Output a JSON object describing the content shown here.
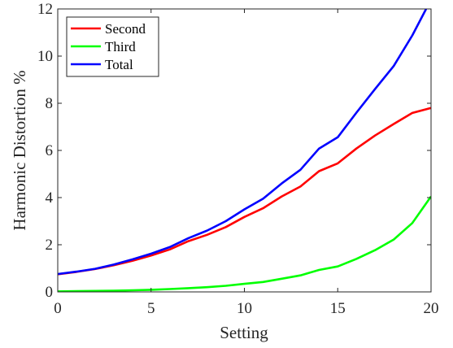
{
  "chart_data": {
    "type": "line",
    "title": "",
    "xlabel": "Setting",
    "ylabel": "Harmonic Distortion %",
    "xlim": [
      0,
      20
    ],
    "ylim": [
      0,
      12
    ],
    "xticks": [
      0,
      5,
      10,
      15,
      20
    ],
    "yticks": [
      0,
      2,
      4,
      6,
      8,
      10,
      12
    ],
    "grid": false,
    "legend_position": "top-left",
    "x": [
      0,
      1,
      2,
      3,
      4,
      5,
      6,
      7,
      8,
      9,
      10,
      11,
      12,
      13,
      14,
      15,
      16,
      17,
      18,
      19,
      20
    ],
    "series": [
      {
        "name": "Second",
        "color": "#ff0000",
        "values": [
          0.75,
          0.85,
          0.97,
          1.13,
          1.32,
          1.54,
          1.8,
          2.15,
          2.42,
          2.75,
          3.18,
          3.55,
          4.05,
          4.47,
          5.12,
          5.45,
          6.08,
          6.63,
          7.12,
          7.59,
          7.8
        ]
      },
      {
        "name": "Third",
        "color": "#00ff00",
        "values": [
          0.02,
          0.03,
          0.04,
          0.05,
          0.07,
          0.09,
          0.12,
          0.16,
          0.2,
          0.26,
          0.34,
          0.42,
          0.56,
          0.7,
          0.93,
          1.08,
          1.4,
          1.77,
          2.22,
          2.92,
          4.05
        ]
      },
      {
        "name": "Total",
        "color": "#0000ff",
        "values": [
          0.76,
          0.86,
          0.98,
          1.16,
          1.38,
          1.62,
          1.9,
          2.28,
          2.6,
          3.0,
          3.5,
          3.95,
          4.6,
          5.18,
          6.08,
          6.56,
          7.6,
          8.6,
          9.58,
          10.88,
          12.4
        ]
      }
    ]
  }
}
